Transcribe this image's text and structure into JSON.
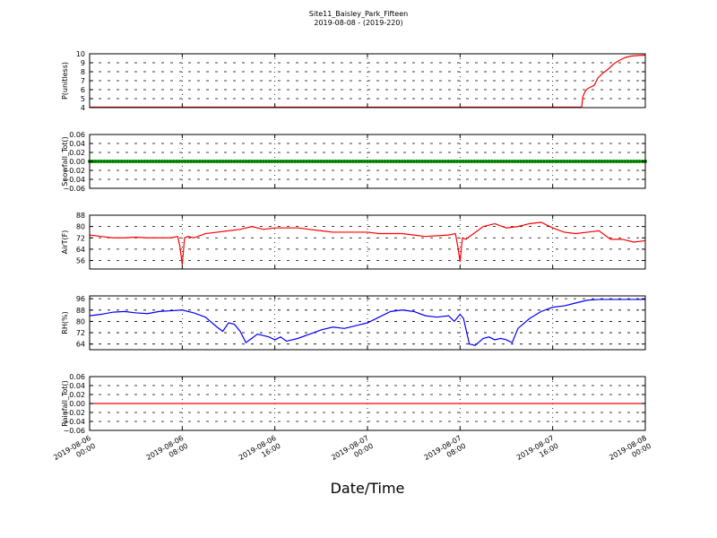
{
  "figure": {
    "title": "Site11_Baisley_Park_Fifteen",
    "subtitle": "2019-08-08 - (2019-220)",
    "xlabel": "Date/Time"
  },
  "chart_data": [
    {
      "type": "line",
      "ylabel": "P(unitless)",
      "ylim": [
        4,
        10
      ],
      "yticks": [
        "4",
        "5",
        "6",
        "7",
        "8",
        "9",
        "10"
      ],
      "ytick_values": [
        4,
        5,
        6,
        7,
        8,
        9,
        10
      ],
      "grid": true,
      "x_hours_range": [
        0,
        48
      ],
      "series": [
        {
          "color": "#ff0000",
          "x_hours": [
            0,
            10,
            20,
            30,
            42.5,
            42.6,
            42.8,
            43.0,
            43.3,
            43.6,
            43.9,
            44.3,
            44.8,
            45.3,
            45.8,
            46.3,
            46.8,
            47.3,
            48
          ],
          "values": [
            4.05,
            4.05,
            4.05,
            4.05,
            4.05,
            5.2,
            5.8,
            6.1,
            6.3,
            6.5,
            7.3,
            7.8,
            8.3,
            8.9,
            9.3,
            9.6,
            9.75,
            9.8,
            9.85
          ]
        }
      ]
    },
    {
      "type": "scatter",
      "ylabel": "Snowfall_Tot()",
      "ylim": [
        -0.06,
        0.06
      ],
      "yticks": [
        "−0.06",
        "−0.04",
        "−0.02",
        "0.00",
        "0.02",
        "0.04",
        "0.06"
      ],
      "ytick_values": [
        -0.06,
        -0.04,
        -0.02,
        0,
        0.02,
        0.04,
        0.06
      ],
      "grid": true,
      "x_hours_range": [
        0,
        48
      ],
      "series": [
        {
          "color": "#008000",
          "x_hours_range_constant": [
            0,
            48
          ],
          "values_constant": 0.0
        }
      ]
    },
    {
      "type": "line",
      "ylabel": "AirT(F)",
      "ylim": [
        50,
        88
      ],
      "yticks": [
        "56",
        "64",
        "72",
        "80",
        "88"
      ],
      "ytick_values": [
        56,
        64,
        72,
        80,
        88
      ],
      "grid": true,
      "x_hours_range": [
        0,
        48
      ],
      "series": [
        {
          "color": "#ff0000",
          "x_hours": [
            0,
            1,
            2,
            3,
            4,
            5,
            6,
            7,
            7.6,
            7.8,
            8.0,
            8.2,
            8.5,
            9,
            10,
            11,
            12,
            13,
            14,
            15,
            16,
            17,
            18,
            19,
            20,
            21,
            22,
            23,
            24,
            25,
            26,
            27,
            28,
            29,
            31,
            31.6,
            31.8,
            32.0,
            32.2,
            32.5,
            33,
            34,
            35,
            36,
            37,
            38,
            39,
            40,
            41,
            42,
            43,
            44,
            45,
            46,
            47,
            48
          ],
          "values": [
            74,
            73,
            72,
            72,
            72.5,
            72,
            72,
            72,
            73,
            66,
            53,
            72,
            73,
            72,
            75,
            76,
            77,
            78,
            80,
            78,
            79,
            79,
            79,
            78,
            77,
            76,
            76,
            76,
            76,
            75,
            75,
            75,
            74,
            73,
            74,
            75,
            66,
            55,
            72,
            71,
            74,
            80,
            82,
            79,
            80,
            82,
            83,
            79,
            76,
            75,
            76,
            77,
            71,
            71,
            69,
            70
          ]
        }
      ]
    },
    {
      "type": "line",
      "ylabel": "RH(%)",
      "ylim": [
        60,
        98
      ],
      "yticks": [
        "64",
        "72",
        "80",
        "88",
        "96"
      ],
      "ytick_values": [
        64,
        72,
        80,
        88,
        96
      ],
      "grid": true,
      "x_hours_range": [
        0,
        48
      ],
      "series": [
        {
          "color": "#0000ff",
          "x_hours": [
            0,
            1,
            2,
            3,
            4,
            5,
            6,
            7,
            8,
            9,
            10,
            11,
            11.5,
            12,
            12.5,
            13,
            13.5,
            14,
            14.5,
            15,
            15.5,
            16,
            16.5,
            17,
            18,
            19,
            20,
            21,
            22,
            23,
            24,
            25,
            26,
            27,
            28,
            29,
            30,
            31,
            31.5,
            32,
            32.3,
            32.8,
            33.3,
            34,
            34.5,
            35,
            35.5,
            36,
            36.5,
            37,
            38,
            39,
            40,
            41,
            42,
            43,
            44,
            45,
            46,
            47,
            48
          ],
          "values": [
            84,
            85,
            86.5,
            87,
            86,
            85.5,
            87,
            87.5,
            88,
            86,
            83,
            76,
            73,
            79,
            78,
            73,
            65,
            68,
            71,
            70,
            69,
            67,
            69,
            66,
            68,
            71,
            74,
            76,
            75,
            77,
            79,
            83,
            87,
            88,
            87,
            84,
            83,
            84,
            80,
            85,
            82,
            64,
            63,
            68,
            69,
            67,
            68,
            67,
            65,
            75,
            82,
            87,
            90,
            91,
            93,
            95,
            95.5,
            95.5,
            95.5,
            95.5,
            95.5
          ]
        }
      ]
    },
    {
      "type": "line",
      "ylabel": "Rainfall_Tot()",
      "ylim": [
        -0.06,
        0.06
      ],
      "yticks": [
        "−0.06",
        "−0.04",
        "−0.02",
        "0.00",
        "0.02",
        "0.04",
        "0.06"
      ],
      "ytick_values": [
        -0.06,
        -0.04,
        -0.02,
        0,
        0.02,
        0.04,
        0.06
      ],
      "grid": true,
      "x_hours_range": [
        0,
        48
      ],
      "series": [
        {
          "color": "#ff0000",
          "x_hours": [
            0,
            48
          ],
          "values": [
            0,
            0
          ]
        }
      ]
    }
  ],
  "xaxis": {
    "tick_hours": [
      0,
      8,
      16,
      24,
      32,
      40,
      48
    ],
    "tick_labels": [
      [
        "2019-08-06",
        "00:00"
      ],
      [
        "2019-08-06",
        "08:00"
      ],
      [
        "2019-08-06",
        "16:00"
      ],
      [
        "2019-08-07",
        "00:00"
      ],
      [
        "2019-08-07",
        "08:00"
      ],
      [
        "2019-08-07",
        "16:00"
      ],
      [
        "2019-08-08",
        "00:00"
      ]
    ]
  }
}
